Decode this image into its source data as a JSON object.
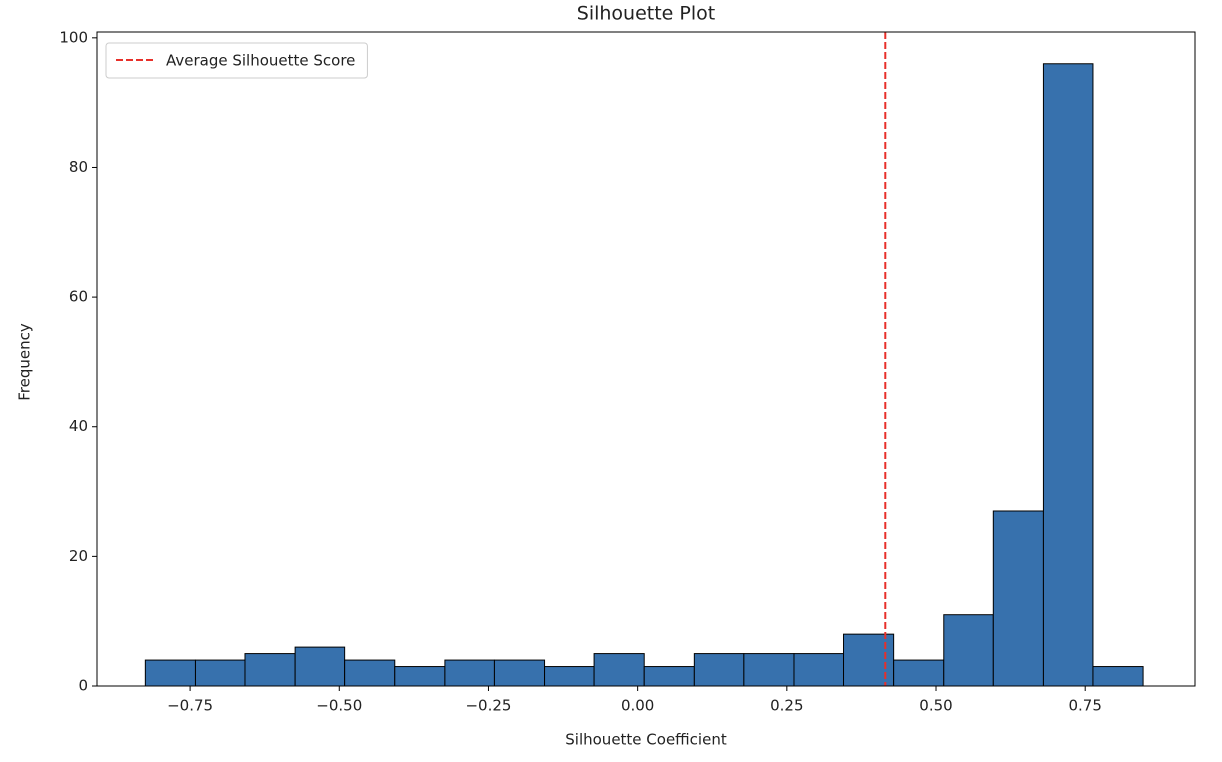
{
  "chart_data": {
    "type": "histogram",
    "title": "Silhouette Plot",
    "x_label": "Silhouette Coefficient",
    "y_label": "Frequency",
    "bins": [
      -0.825,
      -0.741,
      -0.658,
      -0.574,
      -0.491,
      -0.407,
      -0.323,
      -0.24,
      -0.156,
      -0.073,
      0.011,
      0.095,
      0.178,
      0.262,
      0.345,
      0.429,
      0.513,
      0.596,
      0.68,
      0.763,
      0.847
    ],
    "values": [
      4,
      4,
      5,
      6,
      4,
      3,
      4,
      4,
      3,
      5,
      3,
      5,
      5,
      5,
      8,
      4,
      11,
      27,
      96,
      3
    ],
    "color": "#3771ad",
    "edgecolor": "#000000",
    "xlim": [
      -0.906,
      0.934
    ],
    "ylim": [
      0,
      100.9
    ],
    "xticks": [
      {
        "value": -0.75,
        "label": "−0.75"
      },
      {
        "value": -0.5,
        "label": "−0.50"
      },
      {
        "value": -0.25,
        "label": "−0.25"
      },
      {
        "value": 0,
        "label": "0.00"
      },
      {
        "value": 0.25,
        "label": "0.25"
      },
      {
        "value": 0.5,
        "label": "0.50"
      },
      {
        "value": 0.75,
        "label": "0.75"
      }
    ],
    "yticks": [
      0,
      20,
      40,
      60,
      80,
      100
    ],
    "grid": false,
    "reference_line": {
      "name": "Average Silhouette Score",
      "value": 0.415,
      "color": "#e8302a"
    },
    "legend_position": "upper-left"
  }
}
